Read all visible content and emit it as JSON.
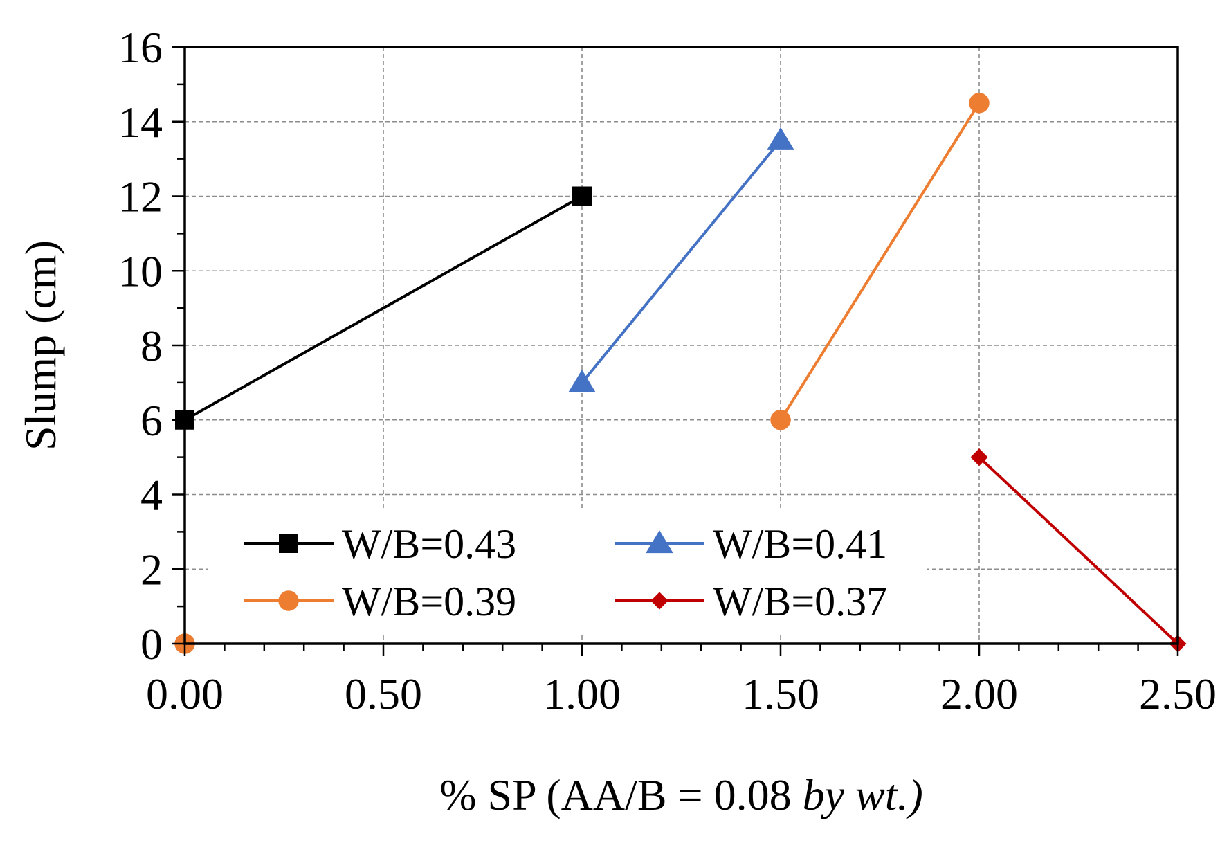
{
  "chart_data": {
    "type": "line",
    "xlabel": "% SP (AA/B = 0.08 by wt.)",
    "xlabel_parts": {
      "main": "% SP (AA/B = 0.08 ",
      "italic": "by wt.)"
    },
    "ylabel": "Slump (cm)",
    "xlim": [
      0,
      2.5
    ],
    "ylim": [
      0,
      16
    ],
    "x_ticks": [
      0,
      0.5,
      1.0,
      1.5,
      2.0,
      2.5
    ],
    "x_tick_labels": [
      "0.00",
      "0.50",
      "1.00",
      "1.50",
      "2.00",
      "2.50"
    ],
    "x_minor_step": 0.1,
    "y_ticks": [
      0,
      2,
      4,
      6,
      8,
      10,
      12,
      14,
      16
    ],
    "y_tick_labels": [
      "0",
      "2",
      "4",
      "6",
      "8",
      "10",
      "12",
      "14",
      "16"
    ],
    "y_minor_step": 1,
    "grid": true,
    "legend_position": "bottom-left",
    "series": [
      {
        "name": "W/B=0.43",
        "color": "#000000",
        "marker": "square",
        "x": [
          0,
          1.0
        ],
        "y": [
          6,
          12
        ]
      },
      {
        "name": "W/B=0.41",
        "color": "#4472c4",
        "marker": "triangle",
        "x": [
          1.0,
          1.5
        ],
        "y": [
          7,
          13.5
        ]
      },
      {
        "name": "W/B=0.39",
        "color": "#ed7d31",
        "marker": "circle",
        "x": [
          1.5,
          2.0
        ],
        "y": [
          6,
          14.5
        ]
      },
      {
        "name": "W/B=0.37",
        "color": "#c00000",
        "marker": "diamond",
        "x": [
          2.0,
          2.5
        ],
        "y": [
          5,
          0
        ]
      }
    ],
    "extra_points": [
      {
        "series": "W/B=0.39",
        "color": "#ed7d31",
        "marker": "circle",
        "x": 0,
        "y": 0
      }
    ]
  }
}
